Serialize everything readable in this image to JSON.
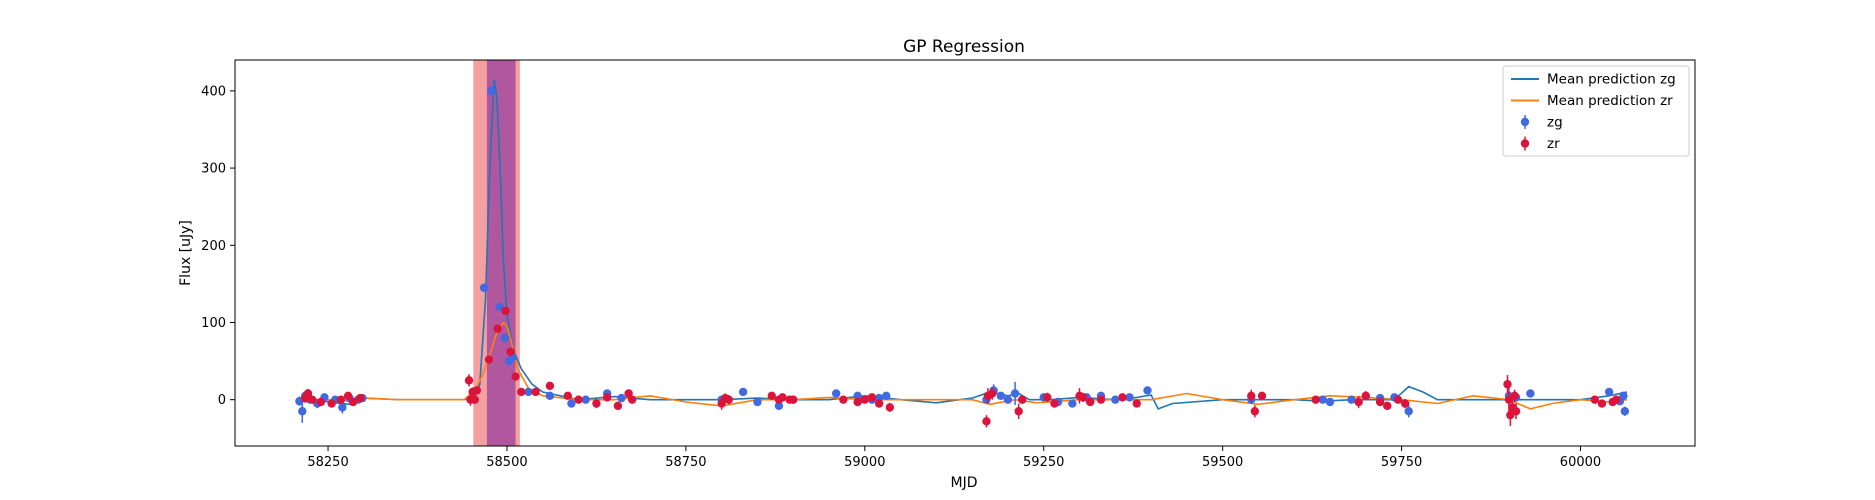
{
  "chart_data": {
    "type": "scatter",
    "title": "GP Regression",
    "xlabel": "MJD",
    "ylabel": "Flux [uJy]",
    "xlim": [
      58120,
      60160
    ],
    "ylim": [
      -60,
      440
    ],
    "xticks": [
      58250,
      58500,
      58750,
      59000,
      59250,
      59500,
      59750,
      60000
    ],
    "yticks": [
      0,
      100,
      200,
      300,
      400
    ],
    "legend_position": "top-right",
    "colors": {
      "zg_line": "#1f77b4",
      "zr_line": "#ff7f0e",
      "zg_points": "#4169e1",
      "zr_points": "#dc143c",
      "span_outer": "#f08080",
      "span_inner": "#9b3fa0"
    },
    "shaded_regions": [
      {
        "x0": 58453,
        "x1": 58518,
        "color": "#f08080",
        "alpha": 0.75
      },
      {
        "x0": 58472,
        "x1": 58512,
        "color": "#9b3fa0",
        "alpha": 0.75
      }
    ],
    "legend": [
      {
        "label": "Mean prediction zg",
        "kind": "line",
        "color": "#1f77b4"
      },
      {
        "label": "Mean prediction zr",
        "kind": "line",
        "color": "#ff7f0e"
      },
      {
        "label": "zg",
        "kind": "errorbar",
        "color": "#4169e1"
      },
      {
        "label": "zr",
        "kind": "errorbar",
        "color": "#dc143c"
      }
    ],
    "series": [
      {
        "name": "Mean prediction zg",
        "kind": "line",
        "color": "#1f77b4",
        "x": [
          58210,
          58230,
          58260,
          58280,
          58300,
          58350,
          58400,
          58440,
          58455,
          58462,
          58470,
          58476,
          58482,
          58486,
          58490,
          58495,
          58500,
          58505,
          58510,
          58520,
          58535,
          58550,
          58600,
          58650,
          58700,
          58800,
          58850,
          58900,
          58950,
          59000,
          59050,
          59100,
          59150,
          59175,
          59200,
          59215,
          59230,
          59260,
          59300,
          59350,
          59380,
          59400,
          59410,
          59430,
          59500,
          59600,
          59640,
          59680,
          59700,
          59740,
          59760,
          59780,
          59800,
          59850,
          59900,
          59950,
          60000,
          60040,
          60065
        ],
        "y": [
          -3,
          0,
          -4,
          -6,
          2,
          0,
          0,
          0,
          3,
          20,
          130,
          300,
          415,
          390,
          310,
          180,
          110,
          85,
          62,
          40,
          20,
          10,
          0,
          4,
          0,
          0,
          2,
          0,
          0,
          5,
          0,
          -4,
          2,
          10,
          5,
          8,
          0,
          0,
          3,
          0,
          3,
          6,
          -12,
          -5,
          0,
          0,
          -2,
          0,
          0,
          0,
          17,
          10,
          0,
          0,
          0,
          0,
          0,
          5,
          10
        ]
      },
      {
        "name": "Mean prediction zr",
        "kind": "line",
        "color": "#ff7f0e",
        "x": [
          58210,
          58230,
          58260,
          58280,
          58300,
          58350,
          58400,
          58440,
          58455,
          58465,
          58475,
          58485,
          58495,
          58500,
          58505,
          58515,
          58530,
          58550,
          58600,
          58650,
          58700,
          58750,
          58800,
          58850,
          58900,
          58950,
          59000,
          59050,
          59100,
          59150,
          59175,
          59210,
          59240,
          59300,
          59350,
          59400,
          59450,
          59500,
          59550,
          59600,
          59650,
          59700,
          59750,
          59800,
          59850,
          59900,
          59930,
          59960,
          60000,
          60040,
          60065
        ],
        "y": [
          -2,
          0,
          0,
          -2,
          2,
          0,
          0,
          0,
          12,
          30,
          55,
          85,
          100,
          95,
          80,
          40,
          15,
          5,
          0,
          0,
          5,
          -3,
          -8,
          0,
          0,
          3,
          0,
          0,
          0,
          0,
          -6,
          0,
          -4,
          0,
          0,
          0,
          8,
          0,
          -6,
          0,
          5,
          3,
          0,
          -5,
          5,
          0,
          -12,
          -5,
          0,
          -3,
          0
        ]
      },
      {
        "name": "zg",
        "kind": "errorbar",
        "color": "#4169e1",
        "x": [
          58210,
          58214,
          58218,
          58225,
          58235,
          58245,
          58260,
          58270,
          58280,
          58292,
          58298,
          58455,
          58468,
          58478,
          58490,
          58497,
          58503,
          58508,
          58530,
          58560,
          58590,
          58610,
          58640,
          58660,
          58800,
          58830,
          58850,
          58880,
          58900,
          58960,
          58990,
          59010,
          59020,
          59030,
          59170,
          59180,
          59190,
          59200,
          59210,
          59220,
          59250,
          59270,
          59290,
          59310,
          59330,
          59350,
          59370,
          59395,
          59540,
          59640,
          59650,
          59680,
          59700,
          59720,
          59740,
          59760,
          59900,
          59910,
          59930,
          60040,
          60055,
          60060,
          60062
        ],
        "y": [
          -2,
          -15,
          5,
          0,
          -5,
          3,
          0,
          -10,
          2,
          0,
          2,
          0,
          145,
          400,
          120,
          80,
          50,
          55,
          10,
          5,
          -5,
          0,
          8,
          2,
          0,
          10,
          -3,
          -8,
          0,
          8,
          5,
          0,
          2,
          5,
          0,
          12,
          5,
          0,
          8,
          0,
          3,
          -3,
          -5,
          3,
          5,
          0,
          3,
          12,
          0,
          0,
          -3,
          0,
          5,
          2,
          3,
          -15,
          5,
          3,
          8,
          10,
          -2,
          5,
          -15
        ],
        "err": [
          6,
          15,
          6,
          4,
          6,
          4,
          4,
          8,
          4,
          4,
          4,
          4,
          4,
          4,
          4,
          4,
          4,
          4,
          4,
          4,
          4,
          4,
          4,
          4,
          4,
          4,
          4,
          4,
          4,
          4,
          4,
          4,
          4,
          4,
          4,
          8,
          4,
          4,
          15,
          4,
          4,
          4,
          4,
          4,
          4,
          4,
          4,
          4,
          4,
          4,
          4,
          4,
          4,
          4,
          4,
          8,
          4,
          4,
          4,
          4,
          4,
          4,
          6
        ]
      },
      {
        "name": "zr",
        "kind": "errorbar",
        "color": "#dc143c",
        "x": [
          58218,
          58222,
          58228,
          58240,
          58255,
          58268,
          58278,
          58285,
          58295,
          58447,
          58449,
          58452,
          58455,
          58458,
          58475,
          58487,
          58498,
          58505,
          58512,
          58520,
          58540,
          58560,
          58585,
          58600,
          58625,
          58640,
          58655,
          58670,
          58675,
          58800,
          58805,
          58810,
          58870,
          58880,
          58885,
          58895,
          58900,
          58970,
          58990,
          59000,
          59010,
          59020,
          59035,
          59170,
          59172,
          59178,
          59215,
          59220,
          59255,
          59265,
          59300,
          59305,
          59315,
          59330,
          59360,
          59380,
          59540,
          59545,
          59555,
          59630,
          59690,
          59700,
          59720,
          59730,
          59745,
          59755,
          59898,
          59900,
          59902,
          59905,
          59908,
          59910,
          60020,
          60030,
          60045,
          60050
        ],
        "y": [
          2,
          8,
          0,
          -3,
          -5,
          0,
          5,
          -3,
          2,
          25,
          0,
          10,
          0,
          12,
          52,
          92,
          115,
          62,
          30,
          10,
          10,
          18,
          5,
          0,
          -5,
          3,
          -8,
          8,
          0,
          -5,
          2,
          0,
          5,
          0,
          3,
          0,
          0,
          0,
          -3,
          0,
          3,
          -5,
          -10,
          -28,
          5,
          8,
          -15,
          0,
          3,
          -5,
          5,
          3,
          -3,
          0,
          3,
          -5,
          5,
          -15,
          5,
          0,
          -3,
          5,
          -3,
          -8,
          0,
          -5,
          20,
          0,
          -20,
          -10,
          5,
          -15,
          0,
          -5,
          -3,
          0
        ],
        "err": [
          6,
          6,
          4,
          4,
          4,
          4,
          4,
          4,
          4,
          8,
          8,
          6,
          4,
          4,
          4,
          4,
          4,
          4,
          4,
          4,
          4,
          4,
          4,
          4,
          6,
          4,
          4,
          4,
          4,
          8,
          6,
          6,
          4,
          4,
          4,
          4,
          4,
          4,
          4,
          4,
          4,
          4,
          6,
          8,
          10,
          8,
          10,
          4,
          6,
          4,
          10,
          6,
          4,
          4,
          4,
          4,
          8,
          8,
          4,
          4,
          8,
          6,
          4,
          4,
          4,
          6,
          12,
          16,
          14,
          10,
          8,
          10,
          4,
          4,
          4,
          4
        ]
      }
    ]
  }
}
